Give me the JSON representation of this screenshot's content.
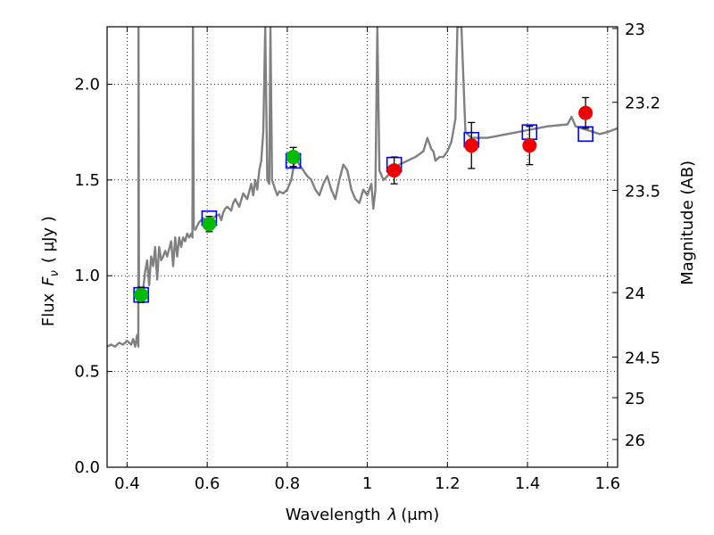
{
  "chart_data": {
    "type": "scatter",
    "xlabel_text": "Wavelength",
    "xlabel_symbol": "λ",
    "xlabel_unit": "(μm)",
    "ylabel_text": "Flux",
    "ylabel_symbol": "F",
    "ylabel_subscript": "ν",
    "ylabel_unit": "( μJy )",
    "y2label": "Magnitude (AB)",
    "xlim": [
      0.35,
      1.625
    ],
    "ylim": [
      0.0,
      2.3
    ],
    "grid": true,
    "x_ticks": [
      {
        "value": 0.4,
        "label": "0.4"
      },
      {
        "value": 0.6,
        "label": "0.6"
      },
      {
        "value": 0.8,
        "label": "0.8"
      },
      {
        "value": 1.0,
        "label": "1"
      },
      {
        "value": 1.2,
        "label": "1.2"
      },
      {
        "value": 1.4,
        "label": "1.4"
      },
      {
        "value": 1.6,
        "label": "1.6"
      }
    ],
    "y_ticks": [
      {
        "value": 0.0,
        "label": "0.0"
      },
      {
        "value": 0.5,
        "label": "0.5"
      },
      {
        "value": 1.0,
        "label": "1.0"
      },
      {
        "value": 1.5,
        "label": "1.5"
      },
      {
        "value": 2.0,
        "label": "2.0"
      }
    ],
    "mag_ticks": [
      {
        "value": 23,
        "label": "23"
      },
      {
        "value": 23.2,
        "label": "23.2"
      },
      {
        "value": 23.5,
        "label": "23.5"
      },
      {
        "value": 24,
        "label": "24"
      },
      {
        "value": 24.5,
        "label": "24.5"
      },
      {
        "value": 25,
        "label": "25"
      },
      {
        "value": 26,
        "label": "26"
      }
    ],
    "mag_zero_point_ujy": 3631000000,
    "series": [
      {
        "kind": "line",
        "color": "#808080",
        "points": [
          [
            0.35,
            0.63
          ],
          [
            0.36,
            0.64
          ],
          [
            0.37,
            0.63
          ],
          [
            0.38,
            0.65
          ],
          [
            0.39,
            0.64
          ],
          [
            0.4,
            0.66
          ],
          [
            0.41,
            0.64
          ],
          [
            0.415,
            0.67
          ],
          [
            0.42,
            0.63
          ],
          [
            0.425,
            0.69
          ],
          [
            0.428,
            0.63
          ],
          [
            0.4285,
            2.3
          ],
          [
            0.4295,
            0.95
          ],
          [
            0.435,
            0.9
          ],
          [
            0.44,
            0.93
          ],
          [
            0.445,
            1.02
          ],
          [
            0.45,
            1.08
          ],
          [
            0.455,
            0.95
          ],
          [
            0.46,
            1.1
          ],
          [
            0.465,
            1.05
          ],
          [
            0.47,
            1.15
          ],
          [
            0.475,
            0.98
          ],
          [
            0.48,
            1.15
          ],
          [
            0.485,
            1.08
          ],
          [
            0.49,
            1.1
          ],
          [
            0.495,
            1.13
          ],
          [
            0.5,
            1.1
          ],
          [
            0.505,
            1.14
          ],
          [
            0.51,
            1.18
          ],
          [
            0.515,
            1.05
          ],
          [
            0.52,
            1.2
          ],
          [
            0.525,
            1.1
          ],
          [
            0.53,
            1.2
          ],
          [
            0.535,
            1.15
          ],
          [
            0.54,
            1.2
          ],
          [
            0.545,
            1.18
          ],
          [
            0.55,
            1.22
          ],
          [
            0.555,
            1.2
          ],
          [
            0.56,
            1.22
          ],
          [
            0.563,
            1.2
          ],
          [
            0.5645,
            2.3
          ],
          [
            0.5665,
            1.25
          ],
          [
            0.57,
            1.24
          ],
          [
            0.58,
            1.28
          ],
          [
            0.59,
            1.3
          ],
          [
            0.6,
            1.28
          ],
          [
            0.61,
            1.29
          ],
          [
            0.62,
            1.31
          ],
          [
            0.63,
            1.32
          ],
          [
            0.635,
            1.29
          ],
          [
            0.64,
            1.33
          ],
          [
            0.645,
            1.35
          ],
          [
            0.65,
            1.36
          ],
          [
            0.66,
            1.34
          ],
          [
            0.665,
            1.38
          ],
          [
            0.67,
            1.4
          ],
          [
            0.68,
            1.36
          ],
          [
            0.69,
            1.43
          ],
          [
            0.7,
            1.4
          ],
          [
            0.71,
            1.48
          ],
          [
            0.715,
            1.42
          ],
          [
            0.72,
            1.5
          ],
          [
            0.725,
            1.45
          ],
          [
            0.73,
            1.55
          ],
          [
            0.735,
            1.6
          ],
          [
            0.74,
            1.75
          ],
          [
            0.745,
            2.3
          ],
          [
            0.75,
            1.5
          ],
          [
            0.755,
            1.48
          ],
          [
            0.758,
            2.3
          ],
          [
            0.762,
            1.5
          ],
          [
            0.77,
            1.45
          ],
          [
            0.775,
            1.42
          ],
          [
            0.78,
            1.44
          ],
          [
            0.79,
            1.43
          ],
          [
            0.8,
            1.45
          ],
          [
            0.81,
            1.5
          ],
          [
            0.82,
            1.62
          ],
          [
            0.83,
            1.58
          ],
          [
            0.84,
            1.55
          ],
          [
            0.85,
            1.52
          ],
          [
            0.86,
            1.5
          ],
          [
            0.87,
            1.45
          ],
          [
            0.88,
            1.42
          ],
          [
            0.89,
            1.48
          ],
          [
            0.9,
            1.52
          ],
          [
            0.91,
            1.45
          ],
          [
            0.92,
            1.4
          ],
          [
            0.93,
            1.5
          ],
          [
            0.94,
            1.58
          ],
          [
            0.95,
            1.55
          ],
          [
            0.96,
            1.45
          ],
          [
            0.97,
            1.4
          ],
          [
            0.98,
            1.38
          ],
          [
            0.99,
            1.45
          ],
          [
            1.0,
            1.42
          ],
          [
            1.01,
            1.48
          ],
          [
            1.015,
            1.35
          ],
          [
            1.02,
            1.45
          ],
          [
            1.025,
            2.3
          ],
          [
            1.03,
            1.55
          ],
          [
            1.04,
            1.5
          ],
          [
            1.05,
            1.52
          ],
          [
            1.06,
            1.55
          ],
          [
            1.08,
            1.58
          ],
          [
            1.1,
            1.6
          ],
          [
            1.12,
            1.62
          ],
          [
            1.14,
            1.65
          ],
          [
            1.15,
            1.72
          ],
          [
            1.16,
            1.66
          ],
          [
            1.165,
            1.65
          ],
          [
            1.17,
            1.6
          ],
          [
            1.18,
            1.62
          ],
          [
            1.19,
            1.62
          ],
          [
            1.2,
            1.65
          ],
          [
            1.21,
            1.7
          ],
          [
            1.22,
            1.82
          ],
          [
            1.225,
            2.3
          ],
          [
            1.235,
            2.3
          ],
          [
            1.245,
            1.75
          ],
          [
            1.26,
            1.72
          ],
          [
            1.3,
            1.72
          ],
          [
            1.35,
            1.74
          ],
          [
            1.4,
            1.76
          ],
          [
            1.45,
            1.78
          ],
          [
            1.5,
            1.79
          ],
          [
            1.51,
            1.83
          ],
          [
            1.52,
            1.78
          ],
          [
            1.55,
            1.76
          ],
          [
            1.58,
            1.74
          ],
          [
            1.6,
            1.75
          ],
          [
            1.625,
            1.77
          ]
        ]
      },
      {
        "kind": "model_squares",
        "color": "#0000ff",
        "points": [
          [
            0.435,
            0.9
          ],
          [
            0.605,
            1.3
          ],
          [
            0.815,
            1.6
          ],
          [
            1.067,
            1.58
          ],
          [
            1.26,
            1.71
          ],
          [
            1.405,
            1.75
          ],
          [
            1.545,
            1.74
          ]
        ]
      },
      {
        "kind": "observed",
        "color": "#00bb00",
        "points": [
          {
            "x": 0.435,
            "y": 0.9,
            "err": 0.04
          },
          {
            "x": 0.605,
            "y": 1.27,
            "err": 0.04
          },
          {
            "x": 0.815,
            "y": 1.62,
            "err": 0.05
          }
        ]
      },
      {
        "kind": "observed",
        "color": "#ee0000",
        "points": [
          {
            "x": 1.067,
            "y": 1.55,
            "err": 0.07
          },
          {
            "x": 1.26,
            "y": 1.68,
            "err": 0.12
          },
          {
            "x": 1.405,
            "y": 1.68,
            "err": 0.1
          },
          {
            "x": 1.545,
            "y": 1.85,
            "err": 0.08
          }
        ]
      }
    ]
  }
}
